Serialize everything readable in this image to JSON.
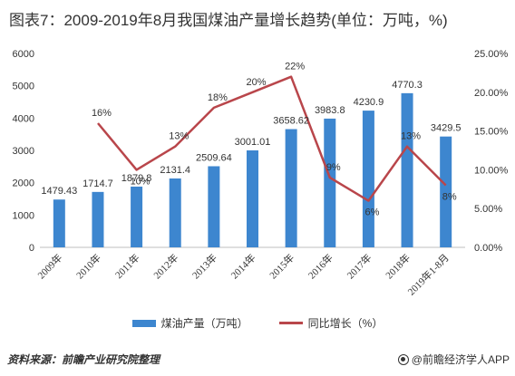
{
  "title": "图表7：2009-2019年8月我国煤油产量增长趋势(单位：万吨，%)",
  "source": "资料来源：前瞻产业研究院整理",
  "brand": "@前瞻经济学人APP",
  "chart_data": {
    "type": "bar",
    "categories": [
      "2009年",
      "2010年",
      "2011年",
      "2012年",
      "2013年",
      "2014年",
      "2015年",
      "2016年",
      "2017年",
      "2018年",
      "2019年1-8月"
    ],
    "series": [
      {
        "name": "煤油产量（万吨）",
        "type": "bar",
        "axis": "left",
        "values": [
          1479.43,
          1714.7,
          1879.8,
          2131.4,
          2509.64,
          3001.01,
          3658.62,
          3983.8,
          4230.9,
          4770.3,
          3429.5
        ],
        "labels": [
          "1479.43",
          "1714.7",
          "1879.8",
          "2131.4",
          "2509.64",
          "3001.01",
          "3658.62",
          "3983.8",
          "4230.9",
          "4770.3",
          "3429.5"
        ],
        "color": "#3d86cf"
      },
      {
        "name": "同比增长（%）",
        "type": "line",
        "axis": "right",
        "values": [
          null,
          16,
          10,
          13,
          18,
          20,
          22,
          9,
          6,
          13,
          8
        ],
        "labels": [
          "",
          "16%",
          "10%",
          "13%",
          "18%",
          "20%",
          "22%",
          "9%",
          "6%",
          "13%",
          "8%"
        ],
        "color": "#b9464b"
      }
    ],
    "y_left": {
      "ylim": [
        0,
        6000
      ],
      "ticks": [
        0,
        1000,
        2000,
        3000,
        4000,
        5000,
        6000
      ],
      "tick_labels": [
        "0",
        "1000",
        "2000",
        "3000",
        "4000",
        "5000",
        "6000"
      ]
    },
    "y_right": {
      "ylim": [
        0,
        25
      ],
      "ticks": [
        0,
        5,
        10,
        15,
        20,
        25
      ],
      "tick_labels": [
        "0.00%",
        "5.00%",
        "10.00%",
        "15.00%",
        "20.00%",
        "25.00%"
      ]
    },
    "legend_position": "bottom",
    "grid": false
  }
}
